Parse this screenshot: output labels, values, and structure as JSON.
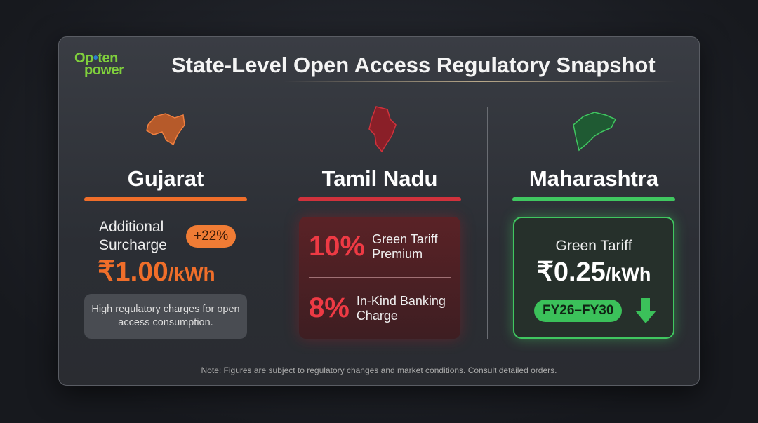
{
  "logo": {
    "line1": "Opten",
    "line2": "power"
  },
  "title": "State-Level Open Access Regulatory Snapshot",
  "colors": {
    "gujarat": "#f06e2a",
    "tamil_nadu": "#d0323c",
    "maharashtra": "#40c760"
  },
  "gujarat": {
    "name": "Gujarat",
    "label": "Additional Surcharge",
    "badge": "+22%",
    "value": "₹1.00",
    "unit": "/kWh",
    "note": "High regulatory charges for open access consumption."
  },
  "tamil_nadu": {
    "name": "Tamil Nadu",
    "rows": [
      {
        "pct": "10%",
        "text": "Green Tariff Premium"
      },
      {
        "pct": "8%",
        "text": "In-Kind Banking Charge"
      }
    ]
  },
  "maharashtra": {
    "name": "Maharashtra",
    "label": "Green Tariff",
    "value": "₹0.25",
    "unit": "/kWh",
    "period": "FY26–FY30",
    "trend_icon": "arrow-down-icon"
  },
  "footer": "Note: Figures are subject to regulatory changes and market conditions. Consult detailed orders."
}
